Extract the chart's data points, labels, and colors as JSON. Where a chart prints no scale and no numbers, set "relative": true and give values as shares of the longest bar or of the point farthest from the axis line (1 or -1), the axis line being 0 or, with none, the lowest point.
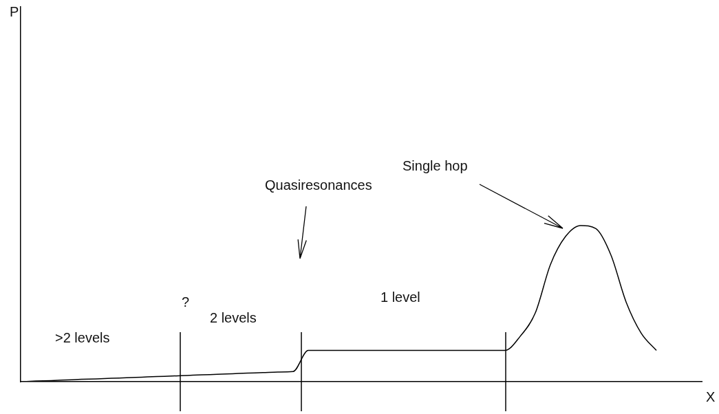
{
  "chart_data": {
    "type": "line",
    "relative": true,
    "xlabel": "X",
    "categories": [
      null,
      null,
      null,
      null,
      null,
      null,
      null,
      null,
      null,
      null,
      null,
      null,
      null,
      null,
      null,
      null,
      null,
      null,
      null,
      null,
      null,
      null,
      null,
      null,
      null,
      null,
      null,
      null,
      null,
      null,
      null,
      null,
      null,
      null,
      null,
      null,
      null,
      null,
      null,
      null,
      null,
      null,
      null,
      null,
      null,
      null
    ],
    "series": [
      {
        "color": "#000000",
        "values": [
          0,
          0.004,
          0.007,
          0.011,
          0.015,
          0.018,
          0.022,
          0.025,
          0.029,
          0.033,
          0.036,
          0.04,
          0.044,
          0.047,
          0.051,
          0.055,
          0.058,
          0.062,
          0.065,
          0.2,
          0.2,
          0.2,
          0.2,
          0.2,
          0.2,
          0.2,
          0.2,
          0.2,
          0.2,
          0.2,
          0.2,
          0.2,
          0.2,
          0.29,
          0.44,
          0.75,
          0.93,
          1,
          0.98,
          0.81,
          0.51,
          0.31,
          0.2,
          null,
          null,
          null
        ]
      }
    ],
    "annotations": [
      "P",
      ">2 levels",
      "?",
      "2 levels",
      "1 level",
      "Quasiresonances",
      "Single hop"
    ],
    "grid": false,
    "legend": false,
    "marker": "none",
    "line_style": "solid"
  }
}
